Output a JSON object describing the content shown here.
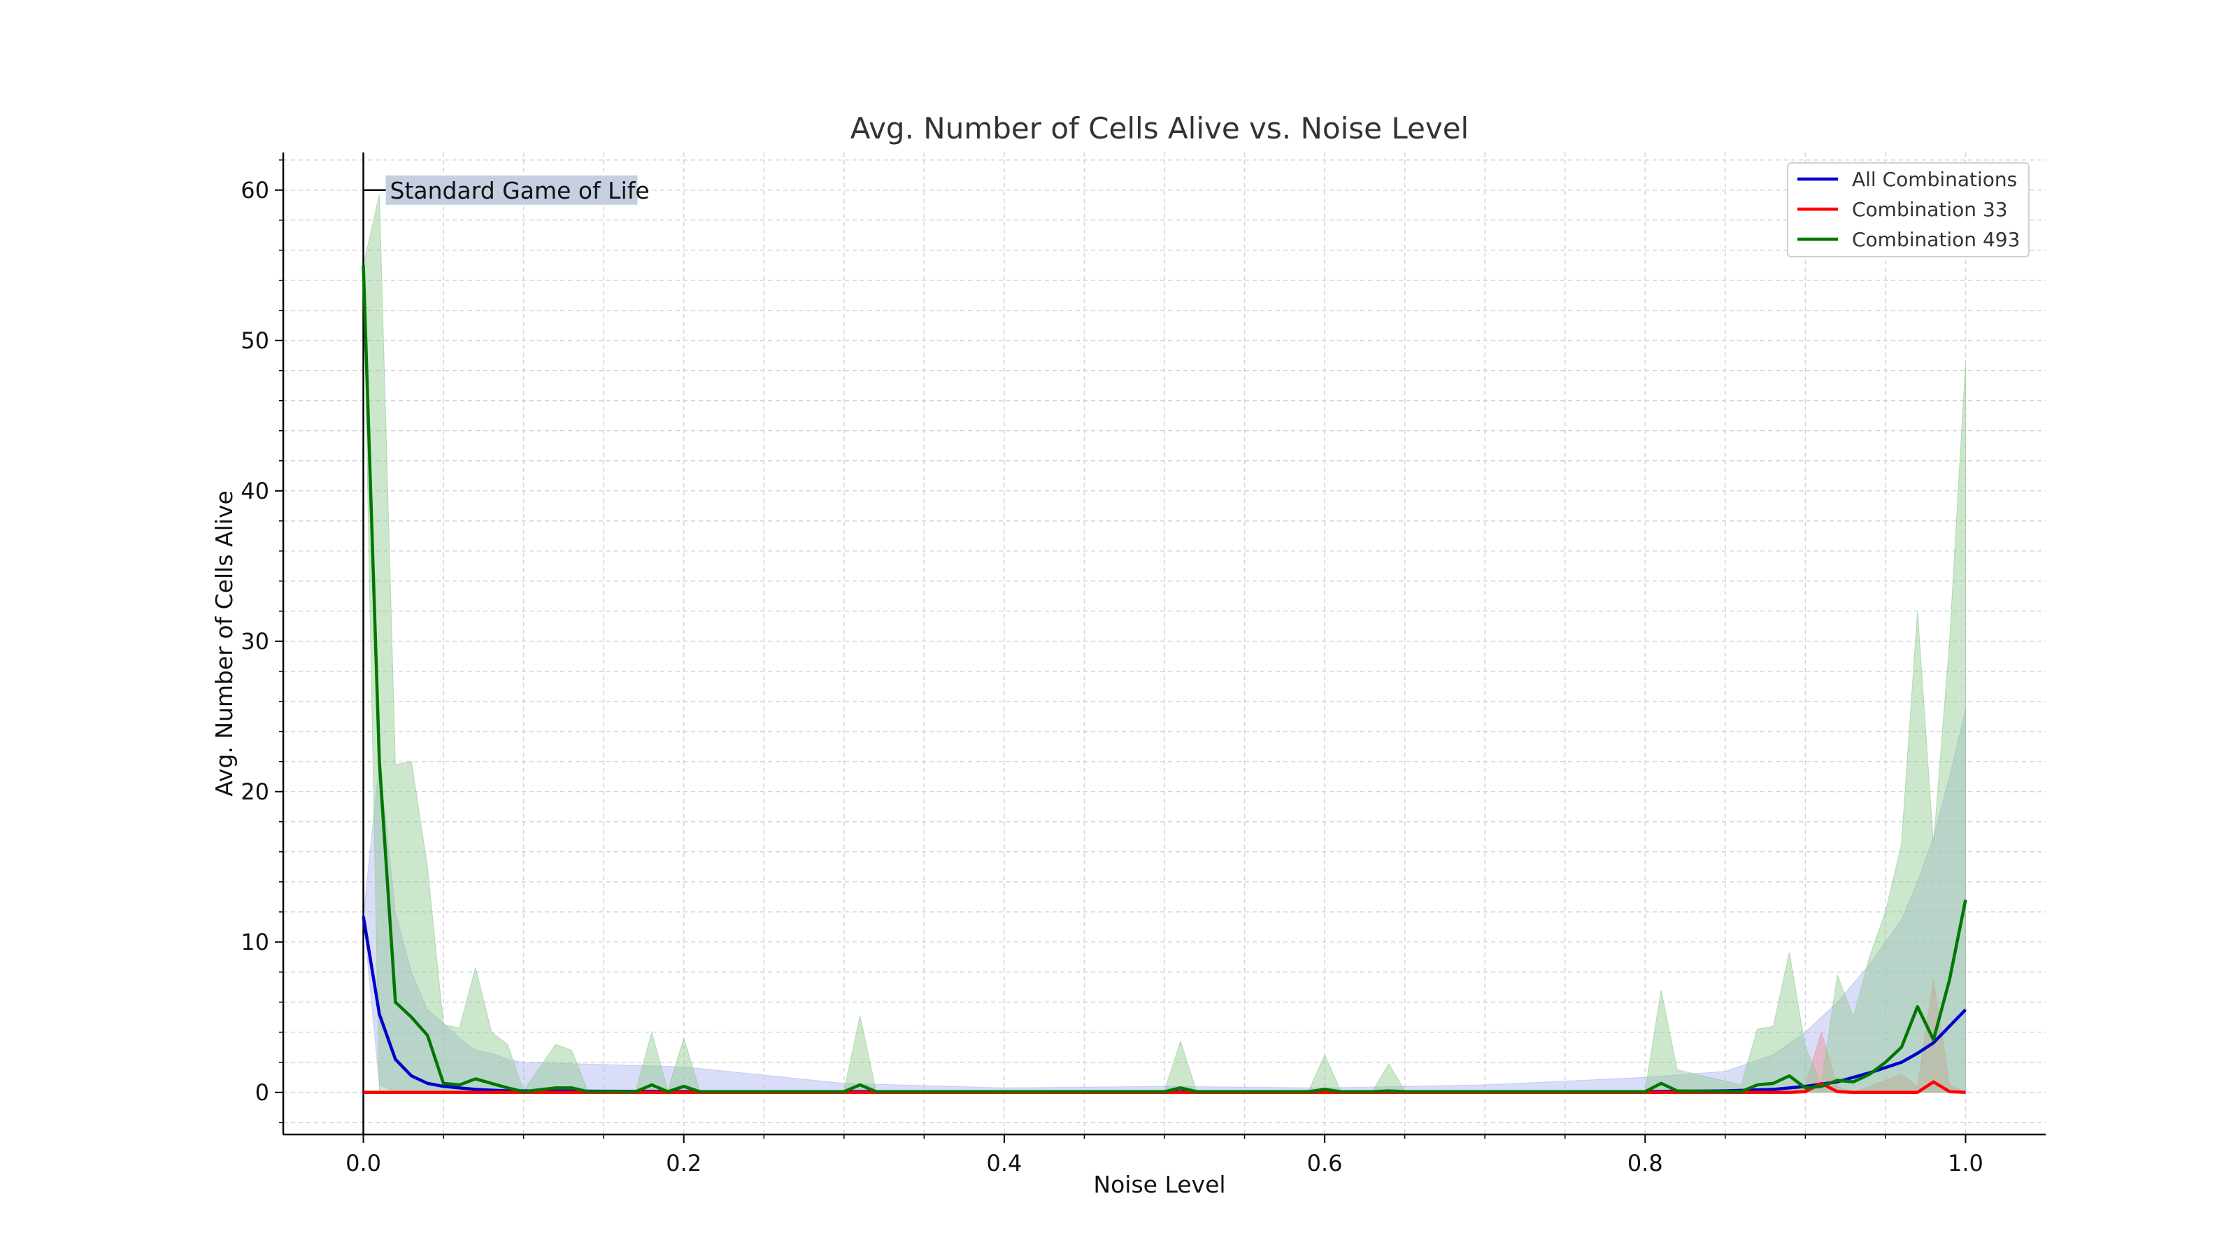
{
  "chart_data": {
    "type": "line",
    "title": "Avg. Number of Cells Alive vs. Noise Level",
    "xlabel": "Noise Level",
    "ylabel": "Avg. Number of Cells Alive",
    "xlim": [
      -0.05,
      1.05
    ],
    "ylim": [
      -2.8,
      62.5
    ],
    "x_ticks": [
      0.0,
      0.2,
      0.4,
      0.6,
      0.8,
      1.0
    ],
    "x_tick_labels": [
      "0.0",
      "0.2",
      "0.4",
      "0.6",
      "0.8",
      "1.0"
    ],
    "y_ticks": [
      0,
      10,
      20,
      30,
      40,
      50,
      60
    ],
    "y_tick_labels": [
      "0",
      "10",
      "20",
      "30",
      "40",
      "50",
      "60"
    ],
    "grid": true,
    "legend_position": "top-right",
    "annotation": {
      "text": "Standard Game of Life",
      "x": 0.0,
      "y": 60
    },
    "series": [
      {
        "name": "All Combinations",
        "color": "#0000cc",
        "band_color": "#aeb4f0",
        "x": [
          0.0,
          0.01,
          0.02,
          0.03,
          0.04,
          0.05,
          0.06,
          0.07,
          0.08,
          0.09,
          0.1,
          0.2,
          0.3,
          0.4,
          0.5,
          0.6,
          0.7,
          0.8,
          0.85,
          0.88,
          0.9,
          0.92,
          0.94,
          0.96,
          0.97,
          0.98,
          0.99,
          1.0
        ],
        "values": [
          11.7,
          5.2,
          2.2,
          1.1,
          0.6,
          0.4,
          0.3,
          0.2,
          0.15,
          0.1,
          0.1,
          0.05,
          0.05,
          0.05,
          0.05,
          0.05,
          0.05,
          0.05,
          0.1,
          0.2,
          0.4,
          0.7,
          1.3,
          2.0,
          2.6,
          3.3,
          4.4,
          5.5
        ],
        "band_upper": [
          11.7,
          22,
          12,
          8,
          5.5,
          4.6,
          3.6,
          2.8,
          2.6,
          2.2,
          2.0,
          1.7,
          0.6,
          0.3,
          0.4,
          0.3,
          0.5,
          1.0,
          1.4,
          2.5,
          4.0,
          6.0,
          8.5,
          11.5,
          14.0,
          17.0,
          21.0,
          25.5
        ],
        "band_lower": [
          11.7,
          0.5,
          0,
          0,
          0,
          0,
          0,
          0,
          0,
          0,
          0,
          0,
          0,
          0,
          0,
          0,
          0,
          0,
          0,
          0,
          0,
          0,
          0,
          0,
          0,
          0,
          0,
          0
        ]
      },
      {
        "name": "Combination 33",
        "color": "#ff0000",
        "band_color": "#e88f8f",
        "x": [
          0.0,
          0.89,
          0.9,
          0.91,
          0.92,
          0.93,
          0.96,
          0.97,
          0.98,
          0.99,
          1.0
        ],
        "values": [
          0,
          0,
          0.05,
          0.6,
          0.05,
          0,
          0,
          0,
          0.7,
          0.05,
          0
        ],
        "band_upper": [
          0,
          0,
          0.5,
          4.0,
          0.4,
          0,
          1.2,
          0.4,
          7.5,
          0.5,
          0
        ],
        "band_lower": [
          0,
          0,
          0,
          0,
          0,
          0,
          0,
          0,
          0,
          0,
          0
        ]
      },
      {
        "name": "Combination 493",
        "color": "#007700",
        "band_color": "#8fc98f",
        "x": [
          0.0,
          0.01,
          0.02,
          0.03,
          0.04,
          0.05,
          0.06,
          0.07,
          0.08,
          0.09,
          0.1,
          0.12,
          0.13,
          0.14,
          0.17,
          0.18,
          0.19,
          0.2,
          0.21,
          0.3,
          0.31,
          0.32,
          0.5,
          0.51,
          0.52,
          0.59,
          0.6,
          0.61,
          0.63,
          0.64,
          0.65,
          0.8,
          0.81,
          0.82,
          0.86,
          0.87,
          0.88,
          0.89,
          0.9,
          0.91,
          0.92,
          0.93,
          0.94,
          0.95,
          0.96,
          0.97,
          0.98,
          0.99,
          1.0
        ],
        "values": [
          55,
          22,
          6,
          5,
          3.8,
          0.6,
          0.5,
          0.9,
          0.6,
          0.3,
          0.05,
          0.3,
          0.3,
          0.05,
          0.05,
          0.5,
          0.05,
          0.4,
          0.05,
          0.05,
          0.5,
          0.05,
          0.05,
          0.3,
          0.05,
          0.05,
          0.2,
          0.05,
          0.05,
          0.1,
          0.05,
          0.05,
          0.6,
          0.1,
          0.05,
          0.5,
          0.6,
          1.1,
          0.3,
          0.4,
          0.8,
          0.7,
          1.2,
          2.0,
          3.0,
          5.7,
          3.5,
          7.5,
          12.8
        ],
        "band_upper": [
          55,
          59.7,
          21.8,
          22,
          15,
          4.5,
          4.3,
          8.3,
          4.0,
          3.2,
          0.1,
          3.2,
          2.8,
          0.1,
          0.1,
          4.0,
          0.1,
          3.6,
          0.1,
          0.1,
          5.1,
          0.1,
          0.1,
          3.4,
          0.1,
          0.1,
          2.5,
          0.1,
          0.1,
          1.9,
          0.1,
          0.1,
          6.8,
          1.5,
          0.5,
          4.2,
          4.4,
          9.3,
          3.0,
          0.6,
          7.8,
          5.0,
          9.0,
          12.0,
          16.5,
          32,
          16.5,
          30,
          48.5
        ],
        "band_lower": [
          55,
          0,
          0,
          0,
          0,
          0,
          0,
          0,
          0,
          0,
          0,
          0,
          0,
          0,
          0,
          0,
          0,
          0,
          0,
          0,
          0,
          0,
          0,
          0,
          0,
          0,
          0,
          0,
          0,
          0,
          0,
          0,
          0,
          0,
          0,
          0,
          0,
          0,
          0,
          0,
          0,
          0,
          0,
          0,
          0,
          0,
          0,
          0,
          0
        ]
      }
    ]
  }
}
